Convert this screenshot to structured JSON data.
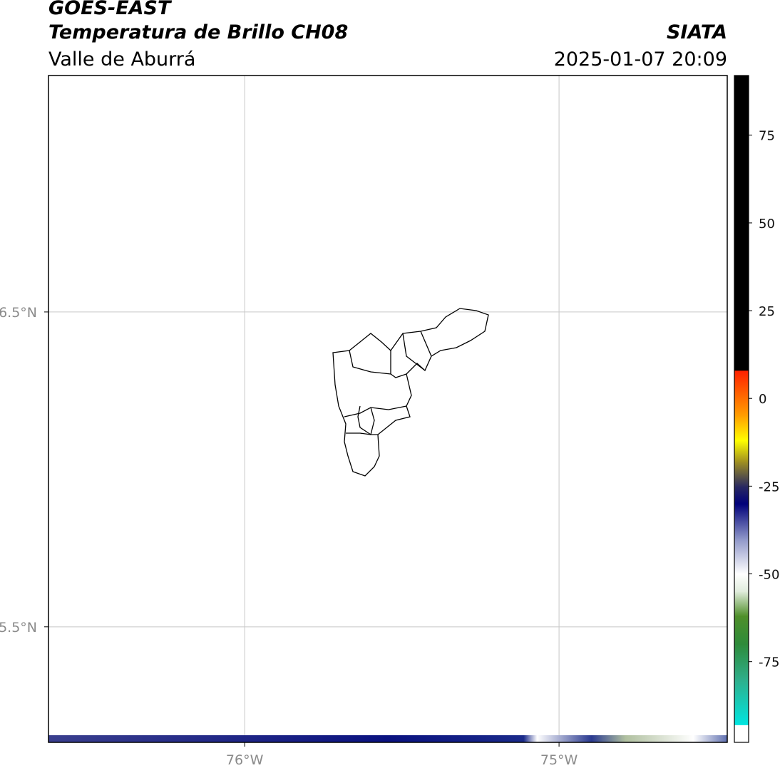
{
  "header": {
    "title": "GOES-EAST",
    "subtitle": "Temperatura de Brillo CH08",
    "region": "Valle de Aburrá",
    "agency": "SIATA",
    "datetime": "2025-01-07 20:09"
  },
  "map": {
    "xlim": [
      -76.624,
      -74.465
    ],
    "ylim": [
      5.133,
      7.251
    ],
    "xticks": [
      {
        "value": -76,
        "label": "76°W"
      },
      {
        "value": -75,
        "label": "75°W"
      }
    ],
    "yticks": [
      {
        "value": 6.5,
        "label": "6.5°N"
      },
      {
        "value": 5.5,
        "label": "5.5°N"
      }
    ],
    "grid": true
  },
  "colorbar": {
    "lim": [
      -98,
      92
    ],
    "ticks": [
      75,
      50,
      25,
      0,
      -25,
      -50,
      -75
    ],
    "stops": [
      {
        "value": -98,
        "color": "#ffffff"
      },
      {
        "value": -93,
        "color": "#ffffff"
      },
      {
        "value": -93,
        "color": "#00e5e0"
      },
      {
        "value": -80,
        "color": "#2fae8a"
      },
      {
        "value": -70,
        "color": "#2e8b3a"
      },
      {
        "value": -62,
        "color": "#4f8f2a"
      },
      {
        "value": -55,
        "color": "#e0ecdc"
      },
      {
        "value": -50,
        "color": "#ffffff"
      },
      {
        "value": -40,
        "color": "#8e96c8"
      },
      {
        "value": -30,
        "color": "#00007a"
      },
      {
        "value": -25,
        "color": "#2a2a60"
      },
      {
        "value": -18,
        "color": "#a09020"
      },
      {
        "value": -12,
        "color": "#ffff00"
      },
      {
        "value": -5,
        "color": "#ffa000"
      },
      {
        "value": 8,
        "color": "#ff2000"
      },
      {
        "value": 8,
        "color": "#000000"
      },
      {
        "value": 92,
        "color": "#000000"
      }
    ]
  }
}
